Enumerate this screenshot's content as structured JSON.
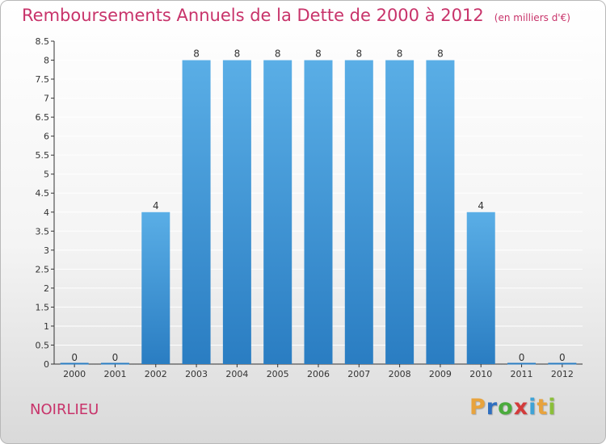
{
  "header": {
    "title": "Remboursements Annuels de la Dette de 2000 à 2012",
    "unit": "(en milliers d'€)"
  },
  "commune": "NOIRLIEU",
  "logo": {
    "letters": [
      "P",
      "r",
      "o",
      "x",
      "i",
      "t",
      "i"
    ],
    "colors": [
      "#e8a33d",
      "#2f6fc0",
      "#4bab3d",
      "#d33b3b",
      "#3fa3d6",
      "#e8a33d",
      "#8bbf3a"
    ]
  },
  "colors": {
    "bar_light": "#5aaee6",
    "bar_dark": "#2a7dc2",
    "title": "#c8336a",
    "grid": "#ffffff",
    "axis": "#333333"
  },
  "chart_data": {
    "type": "bar",
    "categories": [
      "2000",
      "2001",
      "2002",
      "2003",
      "2004",
      "2005",
      "2006",
      "2007",
      "2008",
      "2009",
      "2010",
      "2011",
      "2012"
    ],
    "values": [
      0,
      0,
      4,
      8,
      8,
      8,
      8,
      8,
      8,
      8,
      4,
      0,
      0
    ],
    "data_labels": [
      "0",
      "0",
      "4",
      "8",
      "8",
      "8",
      "8",
      "8",
      "8",
      "8",
      "4",
      "0",
      "0"
    ],
    "yticks": [
      "0",
      "0.5",
      "1",
      "1.5",
      "2",
      "2.5",
      "3",
      "3.5",
      "4",
      "4.5",
      "5",
      "5.5",
      "6",
      "6.5",
      "7",
      "7.5",
      "8",
      "8.5"
    ],
    "ylim": [
      0,
      8.5
    ],
    "grid": true,
    "title": "Remboursements Annuels de la Dette de 2000 à 2012",
    "xlabel": "",
    "ylabel": ""
  }
}
